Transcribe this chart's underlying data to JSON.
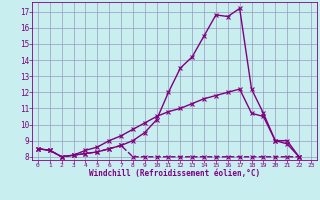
{
  "xlabel": "Windchill (Refroidissement éolien,°C)",
  "background_color": "#c8eef0",
  "line_color": "#800080",
  "xlim": [
    -0.5,
    23.5
  ],
  "ylim": [
    7.8,
    17.6
  ],
  "yticks": [
    8,
    9,
    10,
    11,
    12,
    13,
    14,
    15,
    16,
    17
  ],
  "xticks": [
    0,
    1,
    2,
    3,
    4,
    5,
    6,
    7,
    8,
    9,
    10,
    11,
    12,
    13,
    14,
    15,
    16,
    17,
    18,
    19,
    20,
    21,
    22,
    23
  ],
  "curve1_x": [
    0,
    1,
    2,
    3,
    4,
    5,
    6,
    7,
    8,
    9,
    10,
    11,
    12,
    13,
    14,
    15,
    16,
    17,
    18,
    19,
    20,
    21,
    22
  ],
  "curve1_y": [
    8.5,
    8.4,
    8.0,
    8.1,
    8.2,
    8.3,
    8.5,
    8.7,
    9.0,
    9.5,
    10.3,
    12.0,
    13.5,
    14.2,
    15.5,
    16.8,
    16.7,
    17.2,
    12.2,
    10.7,
    9.0,
    9.0,
    8.0
  ],
  "curve2_x": [
    0,
    1,
    2,
    3,
    4,
    5,
    6,
    7,
    8,
    9,
    10,
    11,
    12,
    13,
    14,
    15,
    16,
    17,
    18,
    19,
    20,
    21,
    22
  ],
  "curve2_y": [
    8.5,
    8.4,
    8.0,
    8.1,
    8.2,
    8.3,
    8.5,
    8.7,
    8.0,
    8.0,
    8.0,
    8.0,
    8.0,
    8.0,
    8.0,
    8.0,
    8.0,
    8.0,
    8.0,
    8.0,
    8.0,
    8.0,
    8.0
  ],
  "curve3_x": [
    0,
    1,
    2,
    3,
    4,
    5,
    6,
    7,
    8,
    9,
    10,
    11,
    12,
    13,
    14,
    15,
    16,
    17,
    18,
    19,
    20,
    21,
    22
  ],
  "curve3_y": [
    8.5,
    8.4,
    8.0,
    8.1,
    8.4,
    8.6,
    9.0,
    9.3,
    9.7,
    10.1,
    10.5,
    10.8,
    11.0,
    11.3,
    11.6,
    11.8,
    12.0,
    12.2,
    10.7,
    10.5,
    9.0,
    8.8,
    8.0
  ],
  "grid_color": "#9999bb",
  "marker": "x",
  "markersize": 3,
  "linewidth": 1.0
}
